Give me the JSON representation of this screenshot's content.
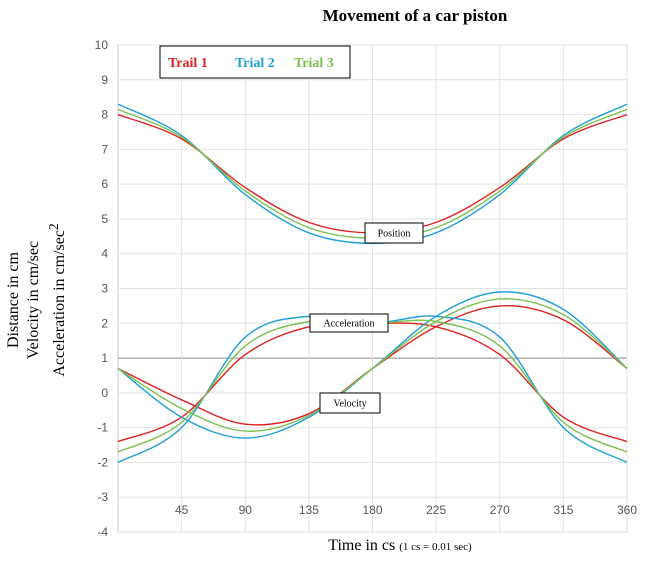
{
  "chart_data": {
    "type": "line",
    "title": "Movement of a car piston",
    "xlabel_main": "Time in cs",
    "xlabel_note": "(1 cs = 0.01 sec)",
    "ylabel_lines": [
      "Distance in cm",
      "Velocity in cm/sec",
      "Acceleration in cm/sec"
    ],
    "ylabel_sup": "2",
    "xlim": [
      0,
      360
    ],
    "ylim": [
      -4,
      10
    ],
    "x_ticks": [
      45,
      90,
      135,
      180,
      225,
      270,
      315,
      360
    ],
    "y_ticks": [
      -4,
      -3,
      -2,
      -1,
      0,
      1,
      2,
      3,
      4,
      5,
      6,
      7,
      8,
      9,
      10
    ],
    "grid": true,
    "legend_position": "top-left",
    "x": [
      0,
      45,
      90,
      135,
      180,
      225,
      270,
      315,
      360
    ],
    "series": [
      {
        "name": "Trail 1",
        "color": "#e02020",
        "position": [
          8.0,
          7.3,
          5.9,
          4.9,
          4.6,
          4.9,
          5.9,
          7.3,
          8.0
        ],
        "velocity": [
          0.7,
          -0.2,
          -0.9,
          -0.6,
          0.7,
          1.9,
          2.5,
          2.1,
          0.7
        ],
        "acceleration": [
          -1.4,
          -0.7,
          1.1,
          1.9,
          2.0,
          1.9,
          1.1,
          -0.7,
          -1.4
        ]
      },
      {
        "name": "Trial 2",
        "color": "#20a0d8",
        "position": [
          8.3,
          7.4,
          5.7,
          4.6,
          4.3,
          4.6,
          5.7,
          7.4,
          8.3
        ],
        "velocity": [
          0.7,
          -0.7,
          -1.3,
          -0.7,
          0.7,
          2.2,
          2.9,
          2.4,
          0.7
        ],
        "acceleration": [
          -2.0,
          -1.0,
          1.6,
          2.2,
          2.0,
          2.2,
          1.6,
          -1.0,
          -2.0
        ]
      },
      {
        "name": "Trial 3",
        "color": "#7cc050",
        "position": [
          8.15,
          7.35,
          5.8,
          4.75,
          4.45,
          4.75,
          5.8,
          7.35,
          8.15
        ],
        "velocity": [
          0.7,
          -0.45,
          -1.1,
          -0.65,
          0.7,
          2.05,
          2.7,
          2.25,
          0.7
        ],
        "acceleration": [
          -1.7,
          -0.85,
          1.35,
          2.05,
          2.0,
          2.05,
          1.35,
          -0.85,
          -1.7
        ]
      }
    ],
    "annotations": [
      "Position",
      "Acceleration",
      "Velocity"
    ]
  }
}
